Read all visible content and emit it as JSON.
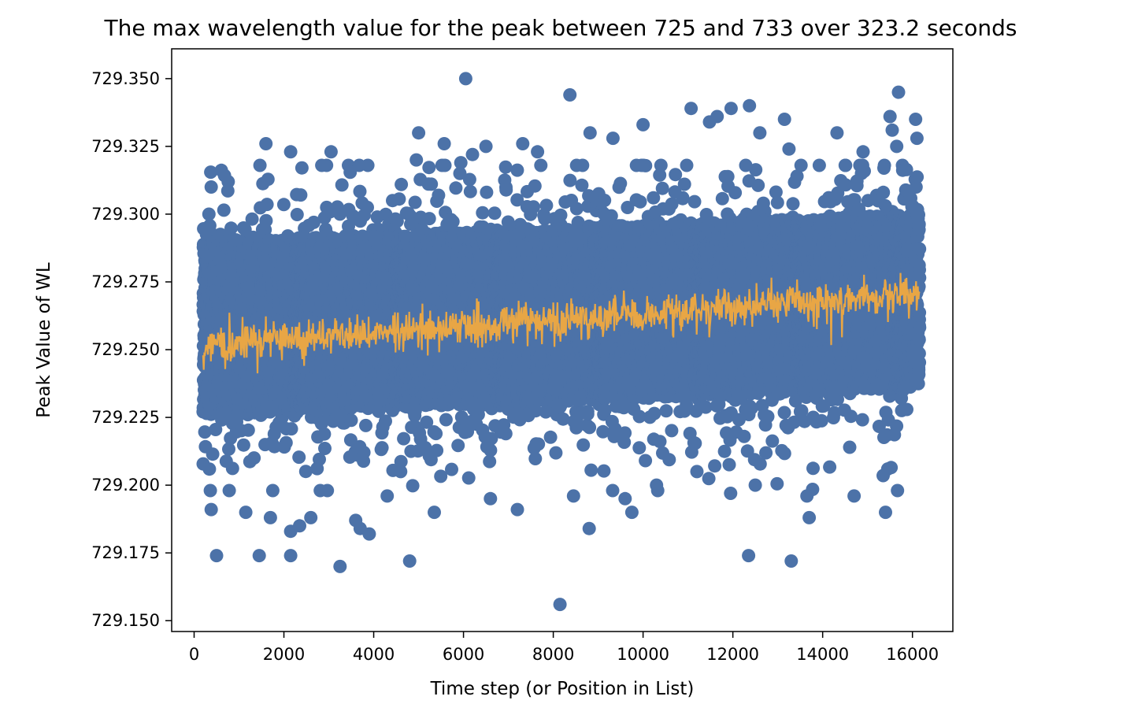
{
  "chart_data": {
    "type": "scatter",
    "title": "The max wavelength value for the peak between 725 and 733 over 323.2 seconds",
    "xlabel": "Time step (or Position in List)",
    "ylabel": "Peak Value of WL",
    "xlim": [
      -500,
      16900
    ],
    "ylim": [
      729.146,
      729.361
    ],
    "x_ticks": [
      0,
      2000,
      4000,
      6000,
      8000,
      10000,
      12000,
      14000,
      16000
    ],
    "x_tick_labels": [
      "0",
      "2000",
      "4000",
      "6000",
      "8000",
      "10000",
      "12000",
      "14000",
      "16000"
    ],
    "y_ticks": [
      729.15,
      729.175,
      729.2,
      729.225,
      729.25,
      729.275,
      729.3,
      729.325,
      729.35
    ],
    "y_tick_labels": [
      "729.150",
      "729.175",
      "729.200",
      "729.225",
      "729.250",
      "729.275",
      "729.300",
      "729.325",
      "729.350"
    ],
    "grid": false,
    "colors": {
      "scatter": "#4c72a8",
      "line": "#e8a645"
    },
    "scatter_band": {
      "x_range": [
        200,
        16160
      ],
      "center_start": 729.258,
      "center_end": 729.268,
      "core_halfwidth": 0.032,
      "count": 16000
    },
    "trend_line": {
      "x_range": [
        200,
        16160
      ],
      "start": 729.252,
      "end": 729.27,
      "noise": 0.0035,
      "points": 1200
    },
    "outliers": [
      [
        6050,
        729.35
      ],
      [
        15690,
        729.345
      ],
      [
        8370,
        729.344
      ],
      [
        16070,
        729.335
      ],
      [
        12370,
        729.34
      ],
      [
        11070,
        729.339
      ],
      [
        11960,
        729.339
      ],
      [
        15500,
        729.336
      ],
      [
        11650,
        729.336
      ],
      [
        11480,
        729.334
      ],
      [
        13150,
        729.335
      ],
      [
        10000,
        729.333
      ],
      [
        14320,
        729.33
      ],
      [
        5000,
        729.33
      ],
      [
        8820,
        729.33
      ],
      [
        15550,
        729.331
      ],
      [
        16100,
        729.328
      ],
      [
        9330,
        729.328
      ],
      [
        12600,
        729.33
      ],
      [
        1600,
        729.326
      ],
      [
        5570,
        729.326
      ],
      [
        6500,
        729.325
      ],
      [
        7320,
        729.326
      ],
      [
        15650,
        729.325
      ],
      [
        2150,
        729.323
      ],
      [
        3050,
        729.323
      ],
      [
        6200,
        729.322
      ],
      [
        7650,
        729.323
      ],
      [
        13250,
        729.324
      ],
      [
        14900,
        729.323
      ],
      [
        4950,
        729.32
      ],
      [
        5940,
        729.319
      ],
      [
        5920,
        729.315
      ],
      [
        330,
        729.3
      ],
      [
        380,
        729.31
      ],
      [
        760,
        729.312
      ],
      [
        16080,
        729.31
      ],
      [
        4420,
        729.305
      ],
      [
        380,
        729.191
      ],
      [
        1150,
        729.19
      ],
      [
        1700,
        729.188
      ],
      [
        5350,
        729.19
      ],
      [
        7200,
        729.191
      ],
      [
        9600,
        729.195
      ],
      [
        9750,
        729.19
      ],
      [
        13650,
        729.196
      ],
      [
        13700,
        729.188
      ],
      [
        14700,
        729.196
      ],
      [
        15400,
        729.19
      ],
      [
        11950,
        729.197
      ],
      [
        10300,
        729.2
      ],
      [
        12500,
        729.2
      ],
      [
        3600,
        729.187
      ],
      [
        3700,
        729.184
      ],
      [
        3900,
        729.182
      ],
      [
        2150,
        729.183
      ],
      [
        2350,
        729.185
      ],
      [
        2600,
        729.188
      ],
      [
        500,
        729.174
      ],
      [
        1450,
        729.174
      ],
      [
        2150,
        729.174
      ],
      [
        3250,
        729.17
      ],
      [
        4800,
        729.172
      ],
      [
        12350,
        729.174
      ],
      [
        13300,
        729.172
      ],
      [
        8150,
        729.156
      ],
      [
        8800,
        729.184
      ],
      [
        8450,
        729.196
      ],
      [
        6600,
        729.195
      ],
      [
        11200,
        729.205
      ],
      [
        4300,
        729.196
      ],
      [
        4600,
        729.205
      ]
    ]
  }
}
